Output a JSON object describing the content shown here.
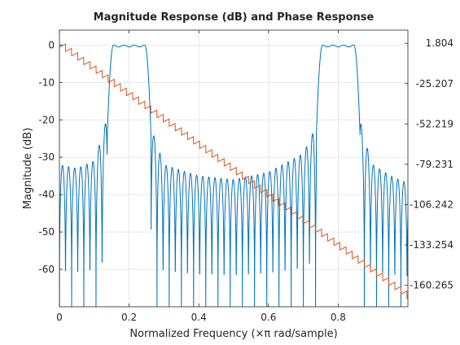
{
  "chart_data": {
    "type": "line",
    "title": "Magnitude Response (dB) and Phase Response",
    "xlabel": "Normalized Frequency (×π rad/sample)",
    "ylabel_left": "Magnitude (dB)",
    "ylabel_right": "",
    "xlim": [
      0,
      1
    ],
    "ylim_left": [
      -70,
      4
    ],
    "ylim_right": [
      -174.65,
      10.64
    ],
    "x_ticks": [
      0,
      0.2,
      0.4,
      0.6,
      0.8
    ],
    "x_tick_labels": [
      "0",
      "0.2",
      "0.4",
      "0.6",
      "0.8"
    ],
    "y_left_ticks": [
      0,
      -10,
      -20,
      -30,
      -40,
      -50,
      -60
    ],
    "y_left_tick_labels": [
      "0",
      "-10",
      "-20",
      "-30",
      "-40",
      "-50",
      "-60"
    ],
    "y_right_ticks": [
      1.804,
      -25.207,
      -52.219,
      -79.231,
      -106.242,
      -133.254,
      -160.265
    ],
    "y_right_tick_labels": [
      "1.804",
      "-25.207",
      "-52.219",
      "-79.231",
      "-106.242",
      "-133.254",
      "-160.265"
    ],
    "grid": true,
    "series": [
      {
        "axis": "left",
        "color": "#0072bd",
        "passbands": [
          [
            0.155,
            0.245
          ],
          [
            0.755,
            0.845
          ]
        ],
        "passband_ripple_db": 1.0,
        "transition_width": 0.018,
        "null_spacing": 0.0175,
        "sidelobe_envelope": [
          [
            0,
            -32
          ],
          [
            0.05,
            -33
          ],
          [
            0.1,
            -31
          ],
          [
            0.13,
            -22
          ],
          [
            0.148,
            -12
          ],
          [
            0.155,
            0
          ],
          [
            0.245,
            0
          ],
          [
            0.252,
            -12
          ],
          [
            0.27,
            -24
          ],
          [
            0.3,
            -32
          ],
          [
            0.4,
            -35
          ],
          [
            0.5,
            -36
          ],
          [
            0.6,
            -34
          ],
          [
            0.7,
            -29
          ],
          [
            0.735,
            -22
          ],
          [
            0.748,
            -12
          ],
          [
            0.755,
            0
          ],
          [
            0.845,
            0
          ],
          [
            0.852,
            -12
          ],
          [
            0.87,
            -24
          ],
          [
            0.9,
            -32
          ],
          [
            0.95,
            -35
          ],
          [
            1.0,
            -37
          ]
        ]
      },
      {
        "axis": "right",
        "color": "#d95319",
        "start": [
          0,
          1.804
        ],
        "end": [
          1.0,
          -167.0
        ],
        "sawtooth_period": 0.0175,
        "sawtooth_amplitude": 2.5
      }
    ]
  }
}
